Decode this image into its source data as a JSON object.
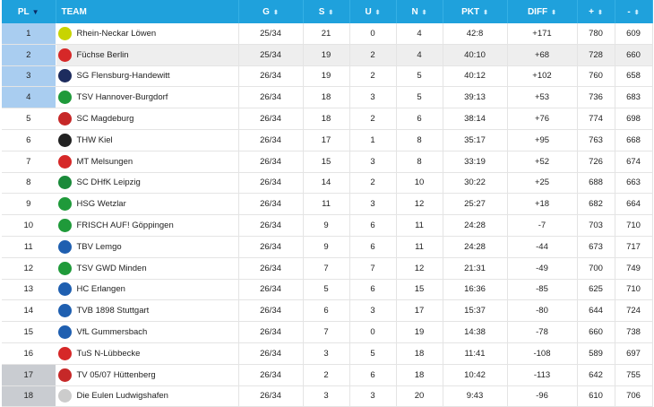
{
  "headers": {
    "pos": "PL",
    "team": "TEAM",
    "games": "G",
    "wins": "S",
    "draws": "U",
    "losses": "N",
    "points": "PKT",
    "diff": "DIFF",
    "goals_for": "+",
    "goals_against": "-"
  },
  "rows": [
    {
      "pos": "1",
      "team": "Rhein-Neckar Löwen",
      "games": "25/34",
      "wins": "21",
      "draws": "0",
      "losses": "4",
      "points": "42:8",
      "diff": "+171",
      "goals_for": "780",
      "goals_against": "609"
    },
    {
      "pos": "2",
      "team": "Füchse Berlin",
      "games": "25/34",
      "wins": "19",
      "draws": "2",
      "losses": "4",
      "points": "40:10",
      "diff": "+68",
      "goals_for": "728",
      "goals_against": "660"
    },
    {
      "pos": "3",
      "team": "SG Flensburg-Handewitt",
      "games": "26/34",
      "wins": "19",
      "draws": "2",
      "losses": "5",
      "points": "40:12",
      "diff": "+102",
      "goals_for": "760",
      "goals_against": "658"
    },
    {
      "pos": "4",
      "team": "TSV Hannover-Burgdorf",
      "games": "26/34",
      "wins": "18",
      "draws": "3",
      "losses": "5",
      "points": "39:13",
      "diff": "+53",
      "goals_for": "736",
      "goals_against": "683"
    },
    {
      "pos": "5",
      "team": "SC Magdeburg",
      "games": "26/34",
      "wins": "18",
      "draws": "2",
      "losses": "6",
      "points": "38:14",
      "diff": "+76",
      "goals_for": "774",
      "goals_against": "698"
    },
    {
      "pos": "6",
      "team": "THW Kiel",
      "games": "26/34",
      "wins": "17",
      "draws": "1",
      "losses": "8",
      "points": "35:17",
      "diff": "+95",
      "goals_for": "763",
      "goals_against": "668"
    },
    {
      "pos": "7",
      "team": "MT Melsungen",
      "games": "26/34",
      "wins": "15",
      "draws": "3",
      "losses": "8",
      "points": "33:19",
      "diff": "+52",
      "goals_for": "726",
      "goals_against": "674"
    },
    {
      "pos": "8",
      "team": "SC DHfK Leipzig",
      "games": "26/34",
      "wins": "14",
      "draws": "2",
      "losses": "10",
      "points": "30:22",
      "diff": "+25",
      "goals_for": "688",
      "goals_against": "663"
    },
    {
      "pos": "9",
      "team": "HSG Wetzlar",
      "games": "26/34",
      "wins": "11",
      "draws": "3",
      "losses": "12",
      "points": "25:27",
      "diff": "+18",
      "goals_for": "682",
      "goals_against": "664"
    },
    {
      "pos": "10",
      "team": "FRISCH AUF! Göppingen",
      "games": "26/34",
      "wins": "9",
      "draws": "6",
      "losses": "11",
      "points": "24:28",
      "diff": "-7",
      "goals_for": "703",
      "goals_against": "710"
    },
    {
      "pos": "11",
      "team": "TBV Lemgo",
      "games": "26/34",
      "wins": "9",
      "draws": "6",
      "losses": "11",
      "points": "24:28",
      "diff": "-44",
      "goals_for": "673",
      "goals_against": "717"
    },
    {
      "pos": "12",
      "team": "TSV GWD Minden",
      "games": "26/34",
      "wins": "7",
      "draws": "7",
      "losses": "12",
      "points": "21:31",
      "diff": "-49",
      "goals_for": "700",
      "goals_against": "749"
    },
    {
      "pos": "13",
      "team": "HC Erlangen",
      "games": "26/34",
      "wins": "5",
      "draws": "6",
      "losses": "15",
      "points": "16:36",
      "diff": "-85",
      "goals_for": "625",
      "goals_against": "710"
    },
    {
      "pos": "14",
      "team": "TVB 1898 Stuttgart",
      "games": "26/34",
      "wins": "6",
      "draws": "3",
      "losses": "17",
      "points": "15:37",
      "diff": "-80",
      "goals_for": "644",
      "goals_against": "724"
    },
    {
      "pos": "15",
      "team": "VfL Gummersbach",
      "games": "26/34",
      "wins": "7",
      "draws": "0",
      "losses": "19",
      "points": "14:38",
      "diff": "-78",
      "goals_for": "660",
      "goals_against": "738"
    },
    {
      "pos": "16",
      "team": "TuS N-Lübbecke",
      "games": "26/34",
      "wins": "3",
      "draws": "5",
      "losses": "18",
      "points": "11:41",
      "diff": "-108",
      "goals_for": "589",
      "goals_against": "697"
    },
    {
      "pos": "17",
      "team": "TV 05/07 Hüttenberg",
      "games": "26/34",
      "wins": "2",
      "draws": "6",
      "losses": "18",
      "points": "10:42",
      "diff": "-113",
      "goals_for": "642",
      "goals_against": "755"
    },
    {
      "pos": "18",
      "team": "Die Eulen Ludwigshafen",
      "games": "26/34",
      "wins": "3",
      "draws": "3",
      "losses": "20",
      "points": "9:43",
      "diff": "-96",
      "goals_for": "610",
      "goals_against": "706"
    }
  ],
  "colors": {
    "header_bg": "#1fa1dc",
    "champions_league": "#a9cdf0",
    "relegation": "#c9ccd1",
    "hover_row": "#eeeeee"
  },
  "logo_colors": [
    "#c8d400",
    "#d62828",
    "#1d2c5e",
    "#1f9a3a",
    "#c62828",
    "#222222",
    "#d62828",
    "#1a8a3a",
    "#1f9a3a",
    "#1f9a3a",
    "#1f5fb0",
    "#1f9a3a",
    "#1f5fb0",
    "#1f5fb0",
    "#1f5fb0",
    "#d62828",
    "#c62828",
    "#cccccc"
  ],
  "highlighted_row": 1
}
